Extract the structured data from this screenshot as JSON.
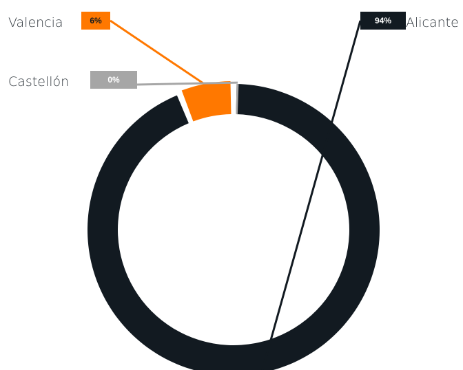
{
  "colors": {
    "Alicante": "#121a21",
    "Valencia": "#ff7800",
    "Castellón": "#a6a6a6",
    "label_text_dark": "#121a21",
    "label_text_light": "#ffffff",
    "category_text": "#333a40"
  },
  "chart_data": {
    "type": "pie",
    "variant": "donut",
    "title": "",
    "legend": "none",
    "slices": [
      {
        "label": "Alicante",
        "value": 94,
        "value_label": "94%"
      },
      {
        "label": "Valencia",
        "value": 6,
        "value_label": "6%"
      },
      {
        "label": "Castellón",
        "value": 0,
        "value_label": "0%"
      }
    ]
  }
}
